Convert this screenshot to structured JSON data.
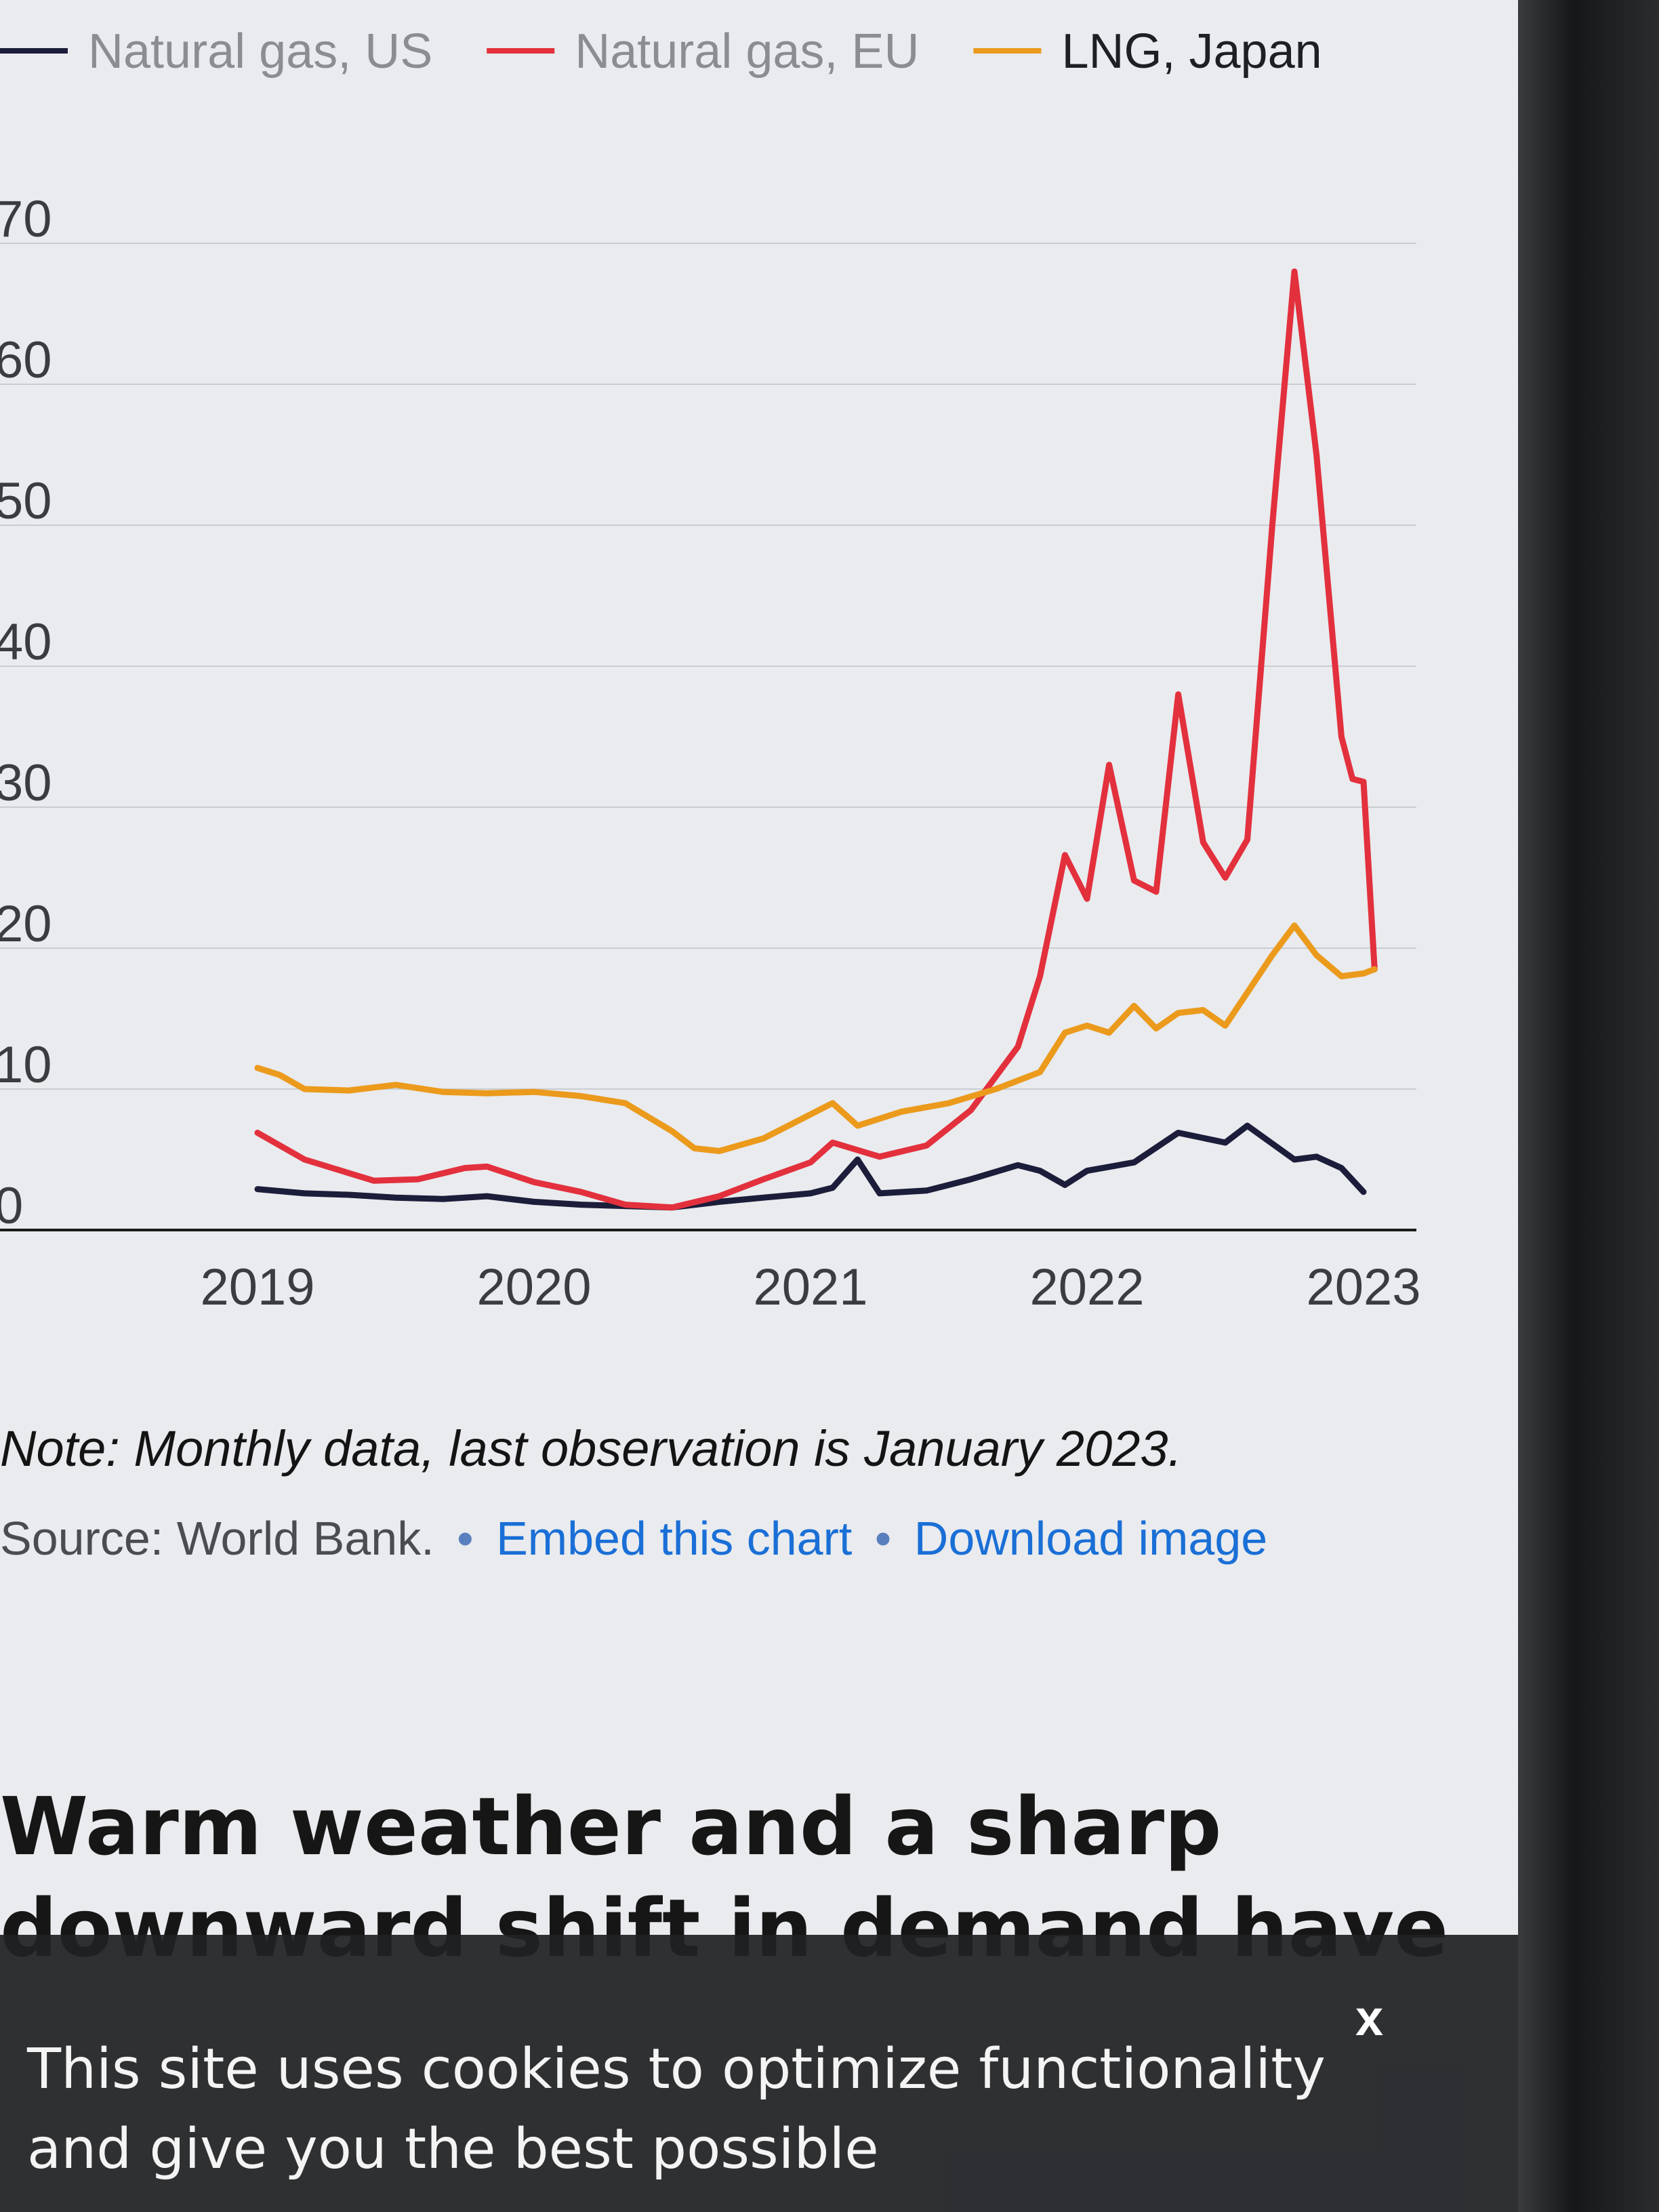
{
  "chart_data": {
    "type": "line",
    "title": "",
    "xlabel": "",
    "ylabel": "",
    "x_ticks": [
      "2019",
      "2020",
      "2021",
      "2022",
      "2023"
    ],
    "y_ticks": [
      "0",
      "10",
      "20",
      "30",
      "40",
      "50",
      "60",
      "70"
    ],
    "ylim": [
      0,
      70
    ],
    "grid": true,
    "legend_position": "top",
    "series": [
      {
        "name": "Natural gas, US",
        "color": "#1b1d3a",
        "points": [
          [
            2019.0,
            2.9
          ],
          [
            2019.17,
            2.6
          ],
          [
            2019.33,
            2.5
          ],
          [
            2019.5,
            2.3
          ],
          [
            2019.67,
            2.2
          ],
          [
            2019.83,
            2.4
          ],
          [
            2020.0,
            2.0
          ],
          [
            2020.17,
            1.8
          ],
          [
            2020.33,
            1.7
          ],
          [
            2020.5,
            1.6
          ],
          [
            2020.67,
            2.0
          ],
          [
            2020.83,
            2.3
          ],
          [
            2021.0,
            2.6
          ],
          [
            2021.08,
            3.0
          ],
          [
            2021.17,
            5.0
          ],
          [
            2021.25,
            2.6
          ],
          [
            2021.42,
            2.8
          ],
          [
            2021.58,
            3.6
          ],
          [
            2021.75,
            4.6
          ],
          [
            2021.83,
            4.2
          ],
          [
            2021.92,
            3.2
          ],
          [
            2022.0,
            4.2
          ],
          [
            2022.17,
            4.8
          ],
          [
            2022.33,
            6.9
          ],
          [
            2022.5,
            6.2
          ],
          [
            2022.58,
            7.4
          ],
          [
            2022.75,
            5.0
          ],
          [
            2022.83,
            5.2
          ],
          [
            2022.92,
            4.4
          ],
          [
            2023.0,
            2.7
          ]
        ]
      },
      {
        "name": "Natural gas, EU",
        "color": "#e3303d",
        "points": [
          [
            2019.0,
            6.9
          ],
          [
            2019.17,
            5.0
          ],
          [
            2019.42,
            3.5
          ],
          [
            2019.58,
            3.6
          ],
          [
            2019.75,
            4.4
          ],
          [
            2019.83,
            4.5
          ],
          [
            2020.0,
            3.4
          ],
          [
            2020.17,
            2.7
          ],
          [
            2020.33,
            1.8
          ],
          [
            2020.5,
            1.6
          ],
          [
            2020.67,
            2.4
          ],
          [
            2020.83,
            3.6
          ],
          [
            2021.0,
            4.8
          ],
          [
            2021.08,
            6.2
          ],
          [
            2021.25,
            5.2
          ],
          [
            2021.42,
            6.0
          ],
          [
            2021.58,
            8.5
          ],
          [
            2021.75,
            13.0
          ],
          [
            2021.83,
            18.0
          ],
          [
            2021.92,
            26.6
          ],
          [
            2022.0,
            23.5
          ],
          [
            2022.08,
            33.0
          ],
          [
            2022.17,
            24.8
          ],
          [
            2022.25,
            24.0
          ],
          [
            2022.33,
            38.0
          ],
          [
            2022.42,
            27.5
          ],
          [
            2022.5,
            25.0
          ],
          [
            2022.58,
            27.7
          ],
          [
            2022.67,
            50.0
          ],
          [
            2022.75,
            68.0
          ],
          [
            2022.83,
            55.0
          ],
          [
            2022.92,
            35.0
          ],
          [
            2022.96,
            32.0
          ],
          [
            2023.0,
            31.8
          ],
          [
            2023.04,
            18.5
          ]
        ]
      },
      {
        "name": "LNG, Japan",
        "color": "#eb9a1c",
        "points": [
          [
            2019.0,
            11.5
          ],
          [
            2019.08,
            11.0
          ],
          [
            2019.17,
            10.0
          ],
          [
            2019.33,
            9.9
          ],
          [
            2019.5,
            10.3
          ],
          [
            2019.67,
            9.8
          ],
          [
            2019.83,
            9.7
          ],
          [
            2020.0,
            9.8
          ],
          [
            2020.17,
            9.5
          ],
          [
            2020.33,
            9.0
          ],
          [
            2020.5,
            7.0
          ],
          [
            2020.58,
            5.8
          ],
          [
            2020.67,
            5.6
          ],
          [
            2020.83,
            6.5
          ],
          [
            2021.0,
            8.2
          ],
          [
            2021.08,
            9.0
          ],
          [
            2021.17,
            7.4
          ],
          [
            2021.33,
            8.4
          ],
          [
            2021.5,
            9.0
          ],
          [
            2021.67,
            10.0
          ],
          [
            2021.83,
            11.2
          ],
          [
            2021.92,
            14.0
          ],
          [
            2022.0,
            14.5
          ],
          [
            2022.08,
            14.0
          ],
          [
            2022.17,
            15.9
          ],
          [
            2022.25,
            14.3
          ],
          [
            2022.33,
            15.4
          ],
          [
            2022.42,
            15.6
          ],
          [
            2022.5,
            14.5
          ],
          [
            2022.67,
            19.5
          ],
          [
            2022.75,
            21.6
          ],
          [
            2022.83,
            19.5
          ],
          [
            2022.92,
            18.0
          ],
          [
            2023.0,
            18.2
          ],
          [
            2023.04,
            18.5
          ]
        ]
      }
    ]
  },
  "note": "Note: Monthly data, last observation is January 2023.",
  "source": {
    "text": "Source: World Bank.",
    "separator": "•",
    "embed_link": "Embed this chart",
    "download_link": "Download image"
  },
  "headline": "Warm weather and a sharp downward shift in demand have",
  "cookie_banner": {
    "text": "This site uses cookies to optimize functionality and give you the best possible",
    "close": "x"
  }
}
